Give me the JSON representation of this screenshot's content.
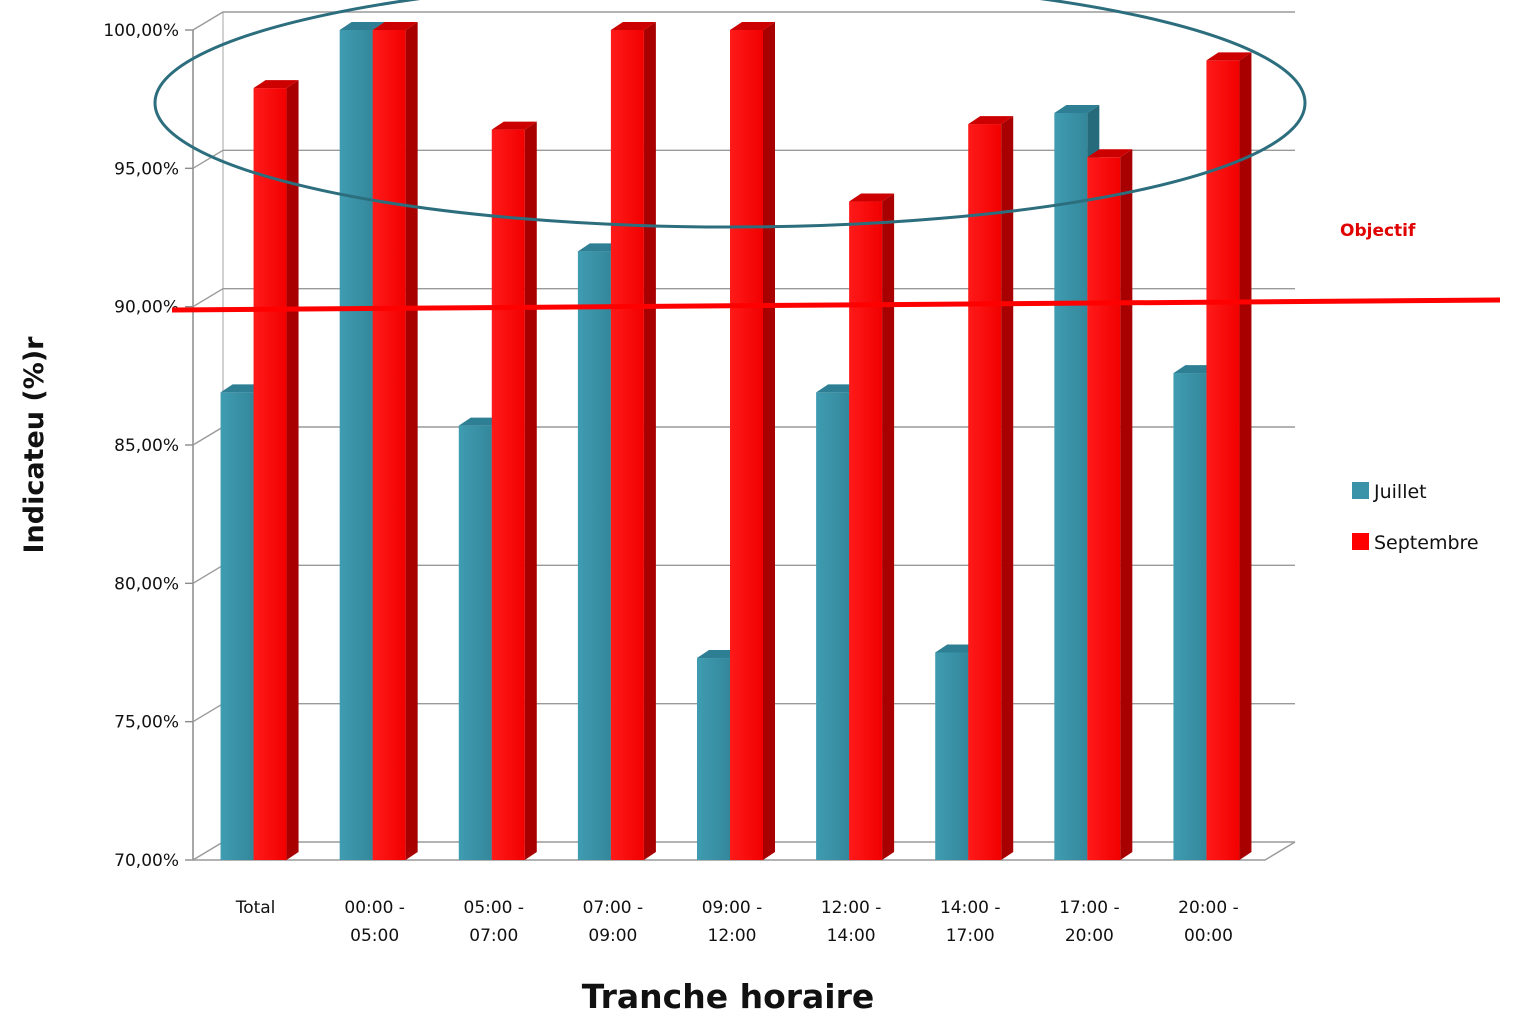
{
  "chart_data": {
    "type": "bar",
    "categories": [
      [
        "Total"
      ],
      [
        "00:00 -",
        "05:00"
      ],
      [
        "05:00 -",
        "07:00"
      ],
      [
        "07:00 -",
        "09:00"
      ],
      [
        "09:00 -",
        "12:00"
      ],
      [
        "12:00 -",
        "14:00"
      ],
      [
        "14:00 -",
        "17:00"
      ],
      [
        "17:00 -",
        "20:00"
      ],
      [
        "20:00 -",
        "00:00"
      ]
    ],
    "series": [
      {
        "name": "Juillet",
        "color": "#3a93a8",
        "values": [
          86.9,
          100.0,
          85.7,
          92.0,
          77.3,
          86.9,
          77.5,
          97.0,
          87.6
        ]
      },
      {
        "name": "Septembre",
        "color": "#ff0000",
        "values": [
          97.9,
          100.0,
          96.4,
          100.0,
          100.0,
          93.8,
          96.6,
          95.4,
          98.9
        ]
      }
    ],
    "ylabel": "Indicateu (%)r",
    "xlabel": "Tranche horaire",
    "ylim": [
      70,
      100
    ],
    "yticks": [
      {
        "value": 70,
        "label": "70,00%"
      },
      {
        "value": 75,
        "label": "75,00%"
      },
      {
        "value": 80,
        "label": "80,00%"
      },
      {
        "value": 85,
        "label": "85,00%"
      },
      {
        "value": 90,
        "label": "90,00%"
      },
      {
        "value": 95,
        "label": "95,00%"
      },
      {
        "value": 100,
        "label": "100,00%"
      }
    ],
    "grid": true,
    "legend": "right",
    "target": {
      "value": 90,
      "label": "Objectif",
      "color": "#ff0000"
    },
    "highlight_ellipse_color": "#2c6e7d"
  }
}
